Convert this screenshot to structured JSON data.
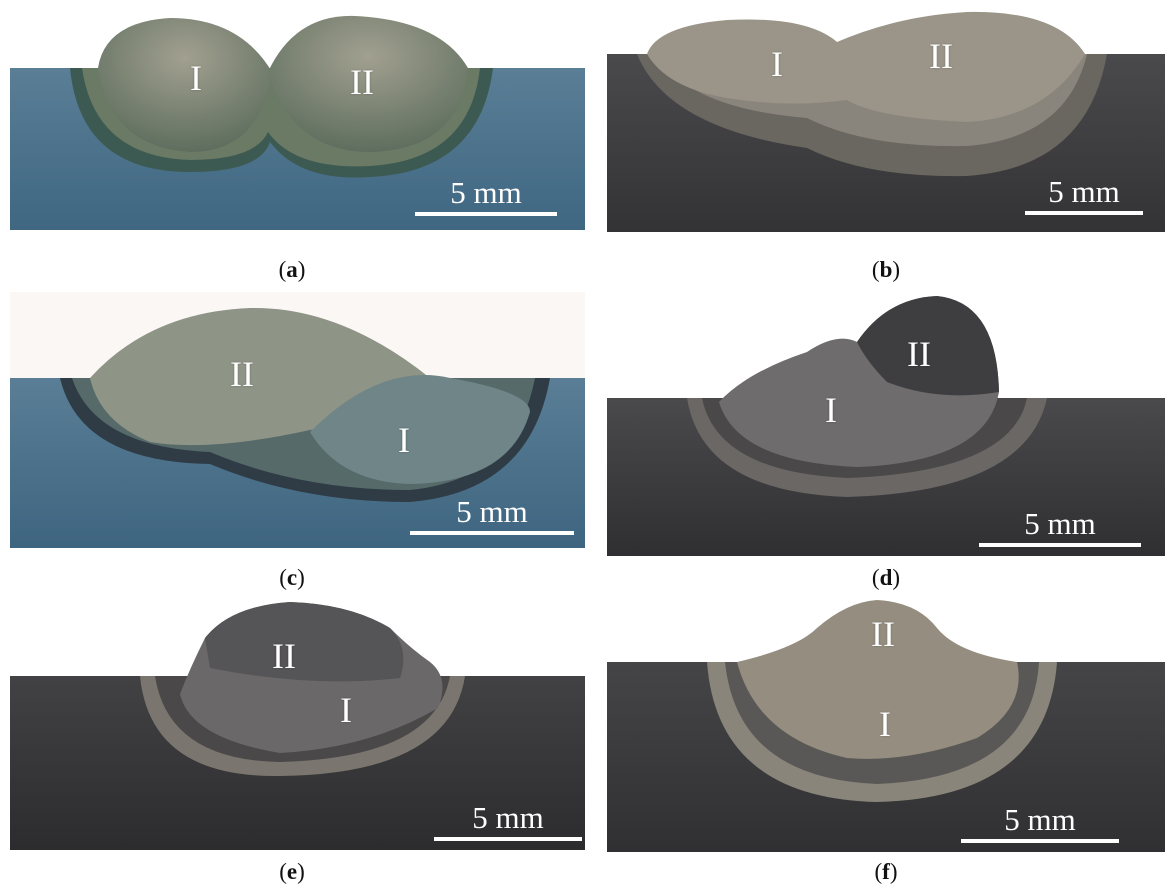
{
  "panels": {
    "a": {
      "caption_letter": "a",
      "bead_labels": [
        "I",
        "II"
      ],
      "scale_text": "5 mm"
    },
    "b": {
      "caption_letter": "b",
      "bead_labels": [
        "I",
        "II"
      ],
      "scale_text": "5 mm"
    },
    "c": {
      "caption_letter": "c",
      "bead_labels": [
        "II",
        "I"
      ],
      "scale_text": "5 mm"
    },
    "d": {
      "caption_letter": "d",
      "bead_labels": [
        "II",
        "I"
      ],
      "scale_text": "5 mm"
    },
    "e": {
      "caption_letter": "e",
      "bead_labels": [
        "II",
        "I"
      ],
      "scale_text": "5 mm"
    },
    "f": {
      "caption_letter": "f",
      "bead_labels": [
        "II",
        "I"
      ],
      "scale_text": "5 mm"
    }
  },
  "caption_open": "(",
  "caption_close": ")",
  "colors": {
    "blue_plate": "#4f7591",
    "gray_plate": "#3d3d3f",
    "dark_plate": "#3a3a3c",
    "haz_ring": "#8f8a7e",
    "bead_blue_tint": "#6f7d7c",
    "bead_gray": "#7a7674"
  }
}
